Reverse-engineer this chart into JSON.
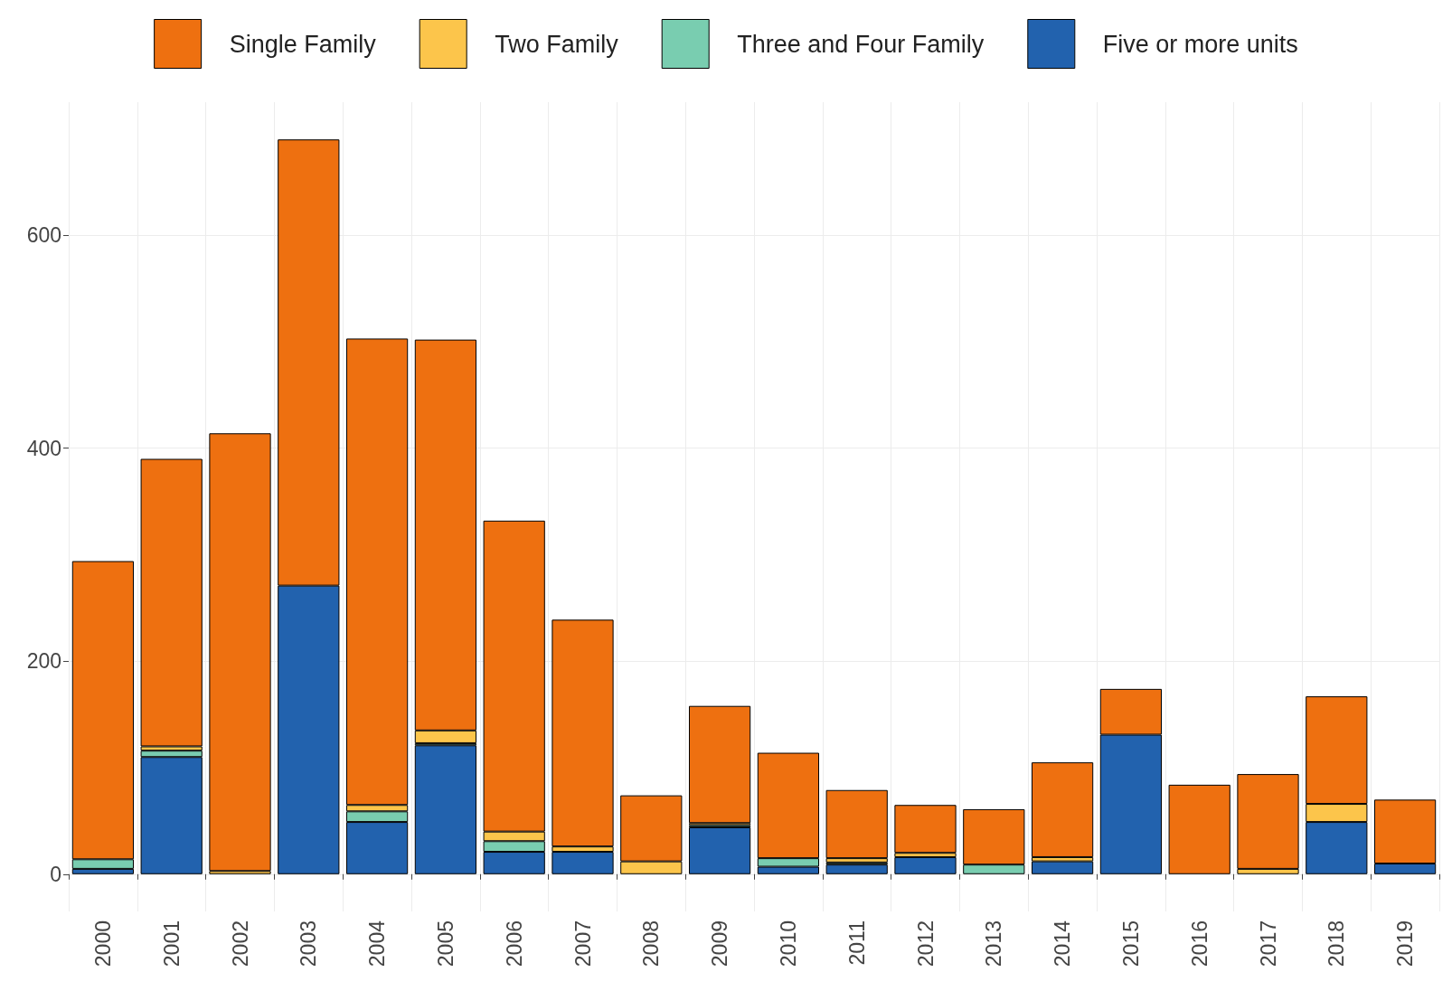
{
  "chart_data": {
    "type": "bar",
    "stacked": true,
    "categories": [
      "2000",
      "2001",
      "2002",
      "2003",
      "2004",
      "2005",
      "2006",
      "2007",
      "2008",
      "2009",
      "2010",
      "2011",
      "2012",
      "2013",
      "2014",
      "2015",
      "2016",
      "2017",
      "2018",
      "2019"
    ],
    "series": [
      {
        "name": "Five or more units",
        "color": "#2262ae",
        "values": [
          5,
          110,
          null,
          271,
          49,
          121,
          21,
          21,
          null,
          44,
          7,
          9,
          16,
          null,
          12,
          131,
          null,
          null,
          49,
          10
        ]
      },
      {
        "name": "Three and Four Family",
        "color": "#79cdb0",
        "values": [
          9,
          6,
          null,
          null,
          10,
          2,
          10,
          null,
          null,
          2,
          8,
          2,
          null,
          9,
          null,
          null,
          null,
          null,
          null,
          null
        ]
      },
      {
        "name": "Two Family",
        "color": "#fcc54b",
        "values": [
          null,
          4,
          3,
          null,
          6,
          12,
          9,
          5,
          12,
          2,
          null,
          4,
          4,
          null,
          4,
          null,
          null,
          5,
          17,
          null
        ]
      },
      {
        "name": "Single Family",
        "color": "#ee7010",
        "values": [
          280,
          270,
          411,
          419,
          438,
          367,
          292,
          213,
          62,
          110,
          99,
          64,
          45,
          52,
          89,
          43,
          84,
          89,
          101,
          60
        ]
      }
    ],
    "ylim": [
      -35,
      725
    ],
    "yticks": [
      0,
      200,
      400,
      600
    ],
    "grid": true,
    "legend": "top"
  }
}
